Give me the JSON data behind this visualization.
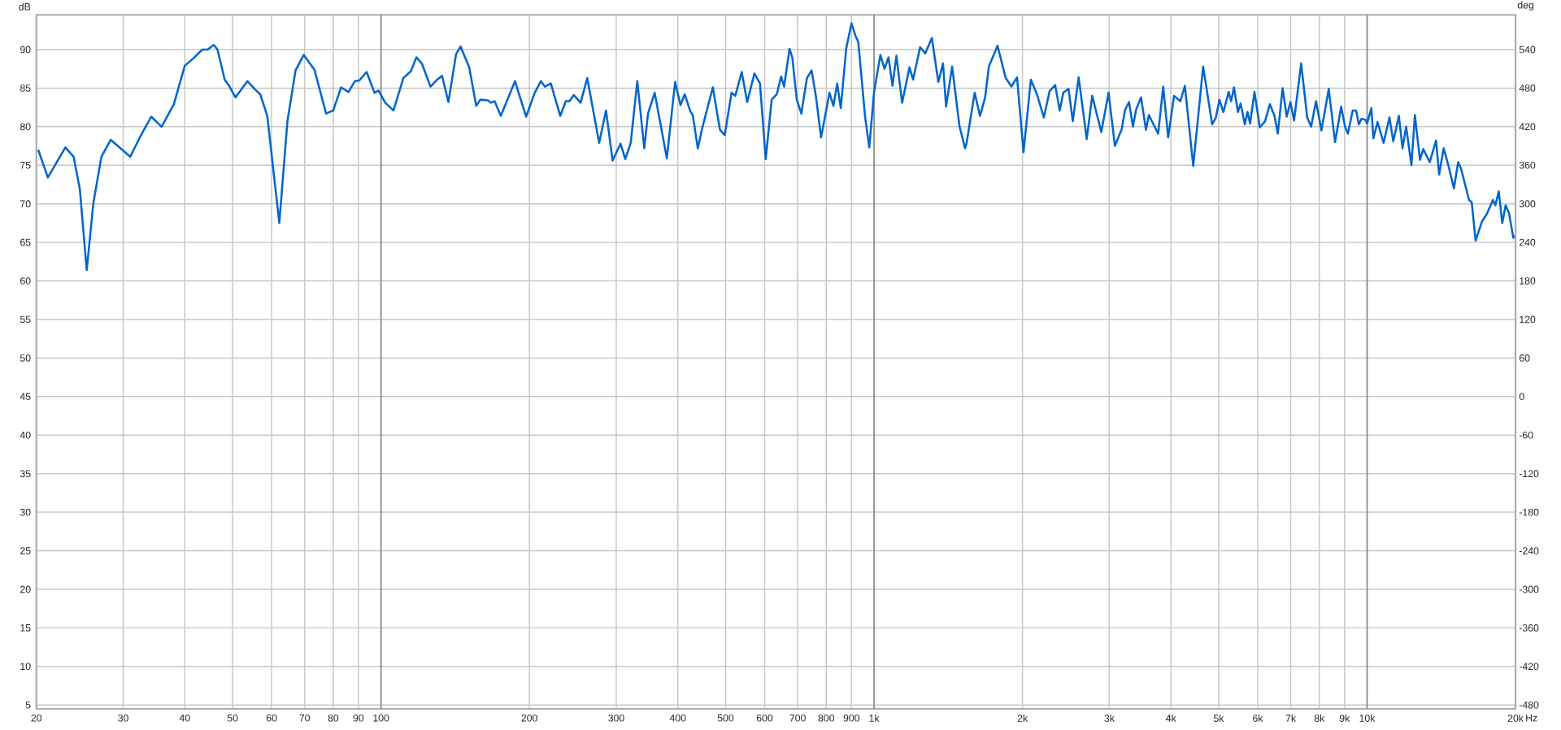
{
  "chart_data": {
    "type": "line",
    "ylabel": "dB",
    "y2label": "deg",
    "xlabel": "Hz",
    "x": [
      20.2,
      21.1,
      22.9,
      23.8,
      24.5,
      25.3,
      26.1,
      27.1,
      28.3,
      31.0,
      32.6,
      34.2,
      35.9,
      38.0,
      40.0,
      41.7,
      43.4,
      44.5,
      45.8,
      46.6,
      48.2,
      49.2,
      50.7,
      53.6,
      55.4,
      56.9,
      58.8,
      62.2,
      64.6,
      67.1,
      69.7,
      73.3,
      77.4,
      80.0,
      83.0,
      85.9,
      88.5,
      90.4,
      93.5,
      97.0,
      98.8,
      102,
      106,
      111,
      115,
      118,
      121,
      126,
      130,
      133,
      137,
      142,
      145,
      151,
      156,
      159,
      165,
      167,
      170,
      175,
      187,
      197,
      205,
      211,
      215,
      221,
      231,
      237,
      241,
      246,
      254,
      262,
      277,
      286,
      295,
      306,
      313,
      321,
      331,
      342,
      348,
      359,
      380,
      395,
      405,
      413,
      424,
      429,
      439,
      449,
      471,
      487,
      498,
      514,
      523,
      539,
      553,
      572,
      587,
      603,
      620,
      635,
      648,
      657,
      674,
      683,
      697,
      712,
      731,
      747,
      762,
      781,
      812,
      827,
      842,
      856,
      878,
      900,
      918,
      929,
      959,
      978,
      1000,
      1030,
      1050,
      1070,
      1090,
      1110,
      1140,
      1180,
      1200,
      1240,
      1270,
      1290,
      1310,
      1350,
      1380,
      1400,
      1440,
      1490,
      1530,
      1540,
      1600,
      1640,
      1680,
      1710,
      1780,
      1850,
      1900,
      1950,
      2010,
      2080,
      2140,
      2210,
      2270,
      2330,
      2380,
      2420,
      2480,
      2530,
      2600,
      2700,
      2770,
      2890,
      2990,
      3080,
      3180,
      3230,
      3290,
      3350,
      3400,
      3480,
      3560,
      3610,
      3680,
      3770,
      3860,
      3950,
      4060,
      4180,
      4270,
      4440,
      4650,
      4850,
      4930,
      5020,
      5110,
      5240,
      5300,
      5370,
      5470,
      5540,
      5650,
      5720,
      5790,
      5910,
      6060,
      6210,
      6350,
      6490,
      6590,
      6740,
      6870,
      6990,
      7110,
      7350,
      7560,
      7700,
      7880,
      8080,
      8360,
      8610,
      8860,
      9020,
      9140,
      9350,
      9500,
      9620,
      9740,
      9920,
      10000,
      10200,
      10300,
      10500,
      10800,
      11100,
      11300,
      11600,
      11800,
      12000,
      12300,
      12500,
      12800,
      13000,
      13400,
      13800,
      14000,
      14300,
      14600,
      15000,
      15300,
      15500,
      16100,
      16300,
      16600,
      17100,
      17500,
      18000,
      18200,
      18500,
      18800,
      19100,
      19400,
      19800,
      20000
    ],
    "series": [
      {
        "color": "#0066cc",
        "values": [
          76.9,
          73.4,
          77.3,
          76.1,
          71.9,
          61.4,
          70.1,
          76.1,
          78.3,
          76.1,
          78.9,
          81.3,
          80.0,
          82.9,
          87.9,
          88.9,
          90.0,
          90.0,
          90.6,
          90.0,
          86.1,
          85.3,
          83.8,
          85.9,
          84.9,
          84.2,
          81.4,
          67.5,
          80.7,
          87.3,
          89.3,
          87.4,
          81.7,
          82.1,
          85.1,
          84.5,
          85.9,
          86.0,
          87.1,
          84.4,
          84.7,
          83.1,
          82.1,
          86.3,
          87.2,
          89.0,
          88.2,
          85.2,
          86.1,
          86.6,
          83.2,
          89.4,
          90.4,
          87.7,
          82.7,
          83.5,
          83.4,
          83.1,
          83.3,
          81.4,
          85.9,
          81.3,
          84.4,
          85.9,
          85.2,
          85.6,
          81.4,
          83.3,
          83.3,
          84.1,
          83.1,
          86.3,
          77.9,
          82.1,
          75.6,
          77.8,
          75.8,
          77.9,
          85.9,
          77.2,
          81.7,
          84.4,
          75.9,
          85.8,
          82.8,
          84.2,
          82.0,
          81.5,
          77.2,
          80.0,
          85.1,
          79.6,
          78.9,
          84.4,
          84.0,
          87.1,
          83.2,
          86.9,
          85.6,
          75.8,
          83.5,
          84.2,
          86.5,
          85.2,
          90.1,
          88.9,
          83.5,
          81.7,
          86.3,
          87.3,
          84.0,
          78.6,
          84.4,
          82.7,
          85.6,
          82.4,
          90.1,
          93.4,
          91.7,
          91.0,
          81.3,
          77.3,
          84.5,
          89.3,
          87.5,
          89.0,
          85.3,
          89.2,
          83.1,
          87.7,
          86.1,
          90.3,
          89.5,
          90.5,
          91.5,
          85.8,
          88.2,
          82.6,
          87.8,
          80.1,
          77.2,
          77.8,
          84.4,
          81.4,
          83.8,
          87.8,
          90.5,
          86.3,
          85.2,
          86.4,
          76.7,
          86.1,
          84.2,
          81.2,
          84.6,
          85.4,
          82.1,
          84.4,
          84.9,
          80.7,
          86.4,
          78.4,
          84.0,
          79.3,
          84.4,
          77.5,
          79.7,
          82.2,
          83.2,
          80.0,
          82.2,
          83.8,
          79.6,
          81.5,
          80.4,
          79.1,
          85.2,
          78.6,
          84.0,
          83.3,
          85.3,
          74.9,
          87.8,
          80.3,
          81.1,
          83.5,
          81.9,
          84.5,
          83.3,
          85.1,
          81.9,
          83.0,
          80.3,
          81.9,
          80.4,
          84.5,
          79.9,
          80.7,
          82.9,
          81.4,
          79.1,
          85.0,
          81.3,
          83.2,
          80.8,
          88.2,
          81.2,
          80.0,
          83.3,
          79.5,
          84.9,
          78.0,
          82.6,
          80.0,
          79.1,
          82.1,
          82.1,
          80.3,
          81.0,
          80.9,
          80.4,
          82.4,
          78.5,
          80.6,
          77.9,
          81.2,
          78.1,
          81.4,
          77.2,
          80.0,
          75.0,
          81.5,
          75.7,
          77.1,
          75.4,
          78.2,
          73.8,
          77.2,
          75.1,
          72.0,
          75.4,
          74.6,
          70.5,
          70.2,
          65.2,
          67.7,
          68.7,
          70.5,
          69.8,
          71.6,
          67.5,
          69.8,
          68.8,
          65.6,
          65.9
        ]
      }
    ],
    "log": "x",
    "xlim": [
      20,
      20000
    ],
    "xticks": [
      20,
      30,
      40,
      50,
      60,
      70,
      80,
      90,
      100,
      200,
      300,
      400,
      500,
      600,
      700,
      800,
      900,
      {
        "value": 1000,
        "label": "1k"
      },
      {
        "value": 2000,
        "label": "2k"
      },
      {
        "value": 3000,
        "label": "3k"
      },
      {
        "value": 4000,
        "label": "4k"
      },
      {
        "value": 5000,
        "label": "5k"
      },
      {
        "value": 6000,
        "label": "6k"
      },
      {
        "value": 7000,
        "label": "7k"
      },
      {
        "value": 8000,
        "label": "8k"
      },
      {
        "value": 9000,
        "label": "9k"
      },
      {
        "value": 10000,
        "label": "10k"
      },
      {
        "value": 20000,
        "label": "20k"
      }
    ],
    "ylim": [
      4.5,
      94.5
    ],
    "yticks": [
      5,
      10,
      15,
      20,
      25,
      30,
      35,
      40,
      45,
      50,
      55,
      60,
      65,
      70,
      75,
      80,
      85,
      90
    ],
    "y2lim": [
      -486,
      594
    ],
    "y2ticks": [
      -480,
      -420,
      -360,
      -300,
      -240,
      -180,
      -120,
      -60,
      0,
      60,
      120,
      180,
      240,
      300,
      360,
      420,
      480,
      540
    ],
    "grid": true,
    "line_style": "solid"
  }
}
